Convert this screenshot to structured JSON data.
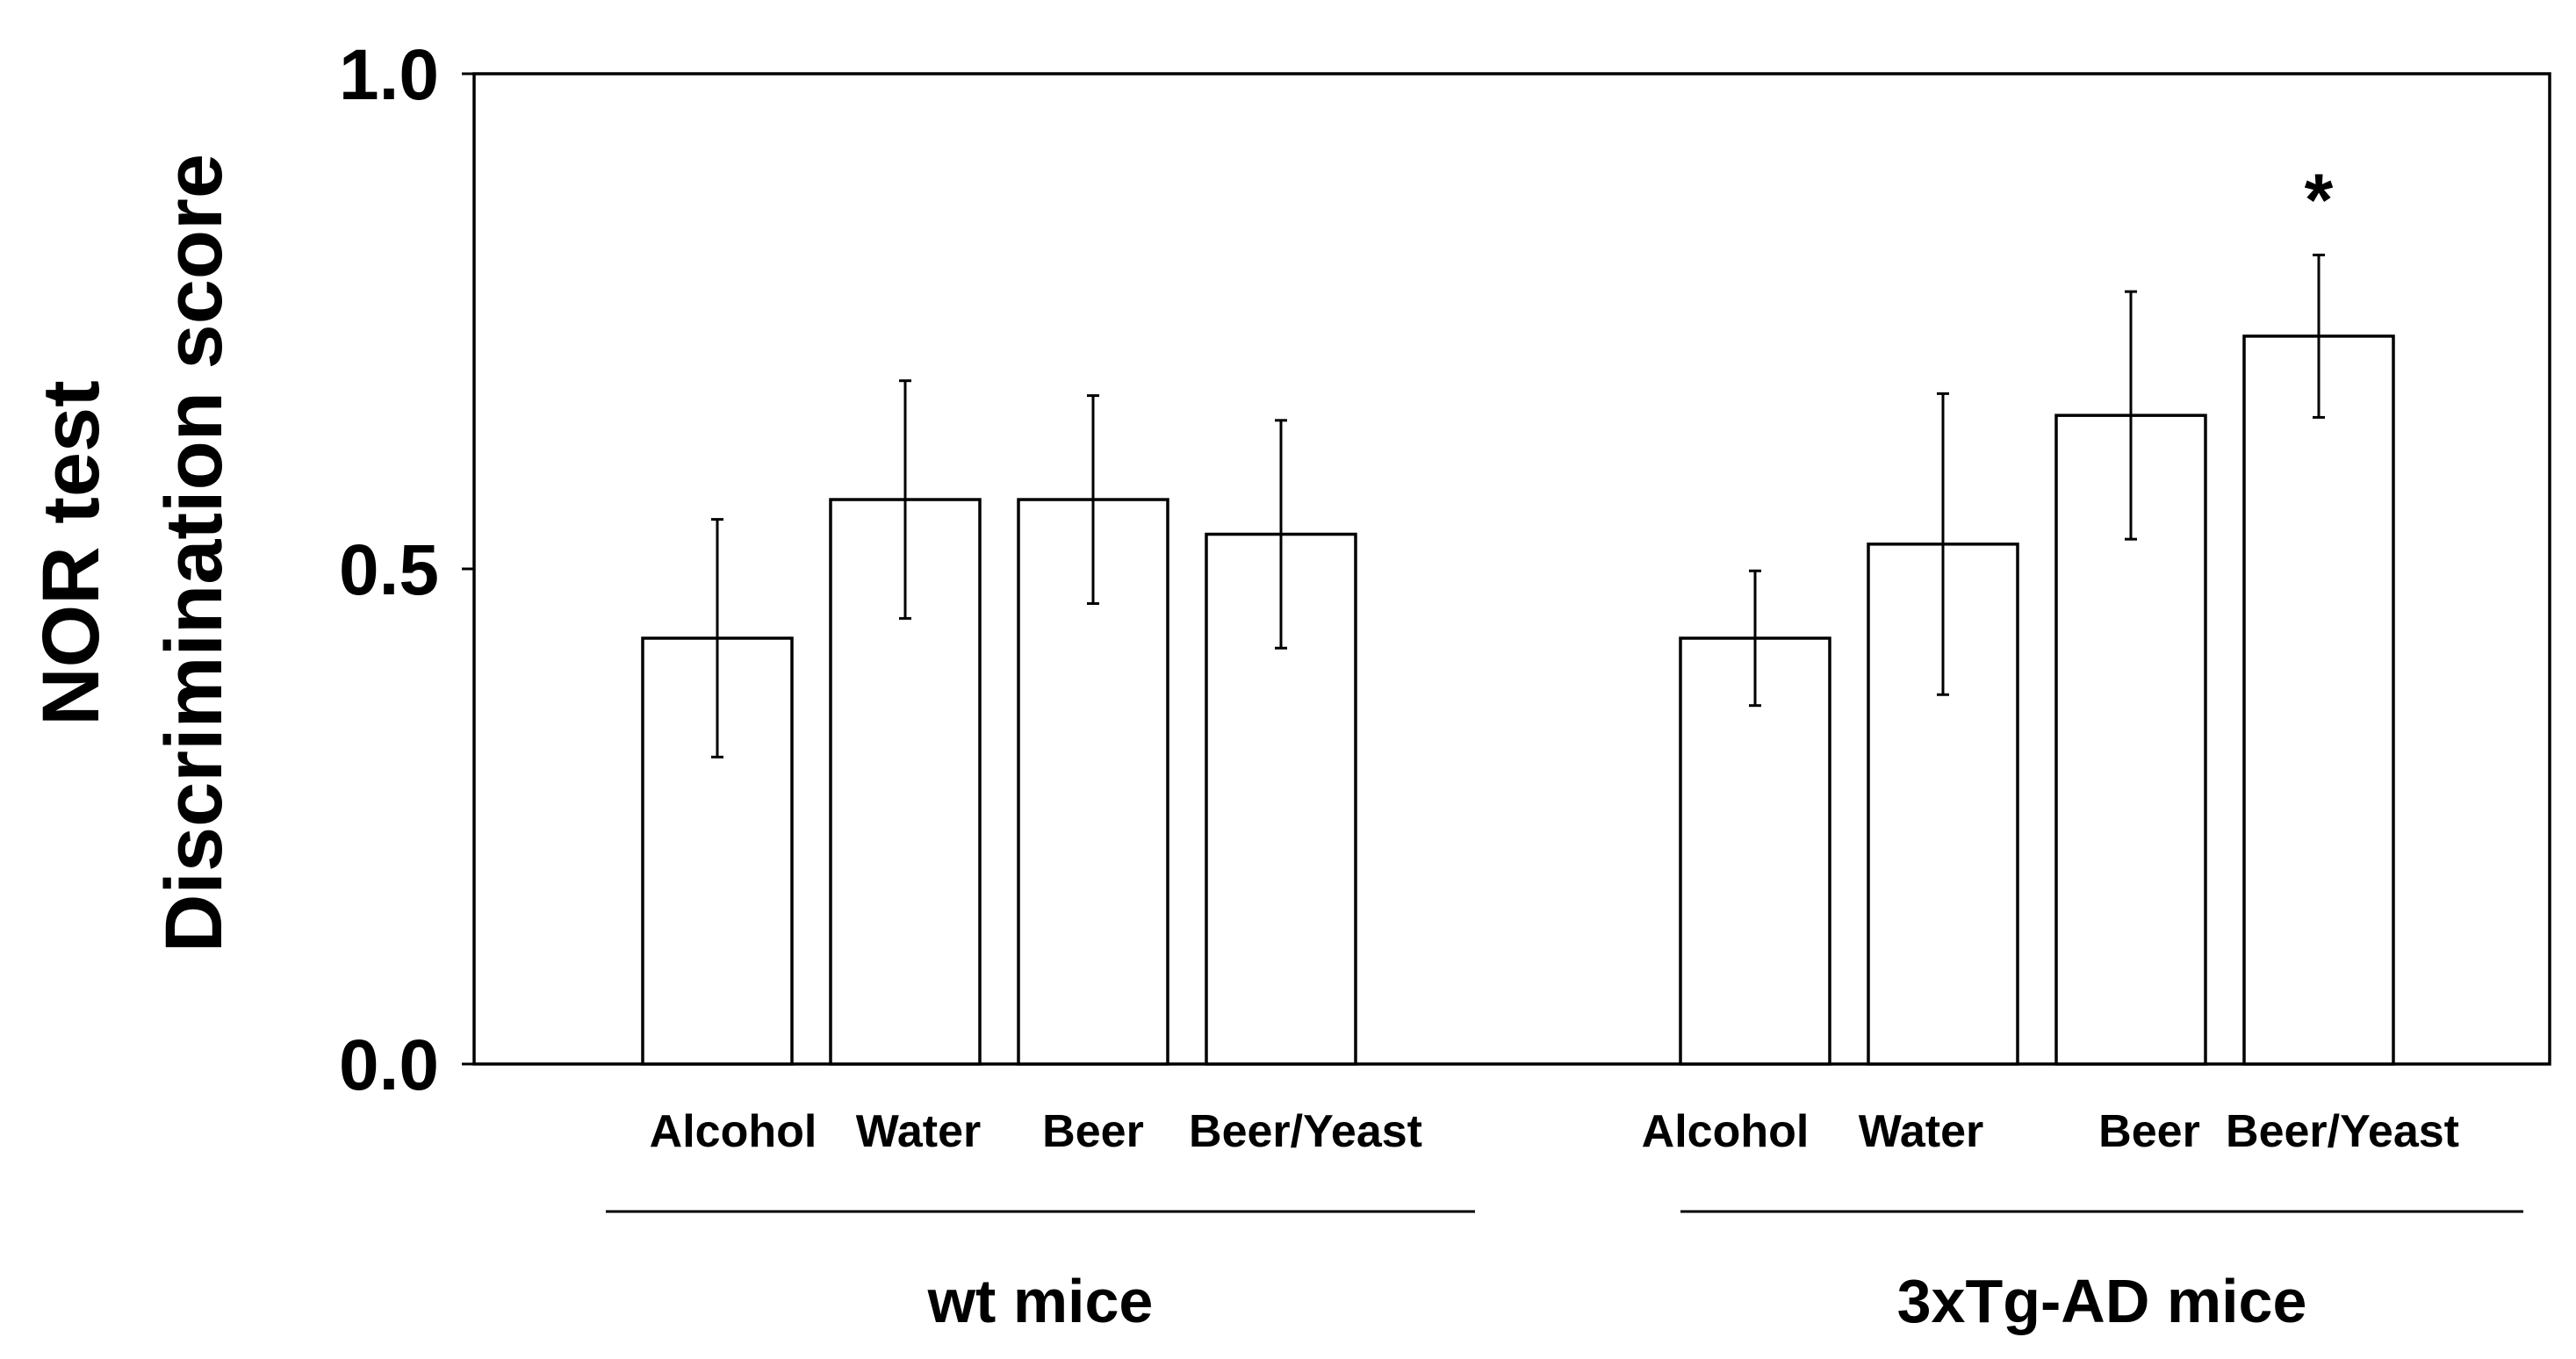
{
  "chart_data": {
    "type": "bar",
    "ylabel_line1": "NOR test",
    "ylabel_line2": "Discrimination score",
    "ylim": [
      0,
      1.0
    ],
    "yticks": [
      "0.0",
      "0.5",
      "1.0"
    ],
    "groups": [
      {
        "name": "wt mice",
        "categories": [
          "Alcohol",
          "Water",
          "Beer",
          "Beer/Yeast"
        ],
        "values": [
          0.43,
          0.57,
          0.57,
          0.535
        ],
        "errors": [
          0.12,
          0.12,
          0.105,
          0.115
        ],
        "annotations": [
          "",
          "",
          "",
          ""
        ]
      },
      {
        "name": "3xTg-AD mice",
        "categories": [
          "Alcohol",
          "Water",
          "Beer",
          "Beer/Yeast"
        ],
        "values": [
          0.43,
          0.525,
          0.655,
          0.735
        ],
        "errors": [
          0.068,
          0.152,
          0.125,
          0.082
        ],
        "annotations": [
          "",
          "",
          "",
          "*"
        ]
      }
    ],
    "grid": false,
    "legend": "none"
  }
}
